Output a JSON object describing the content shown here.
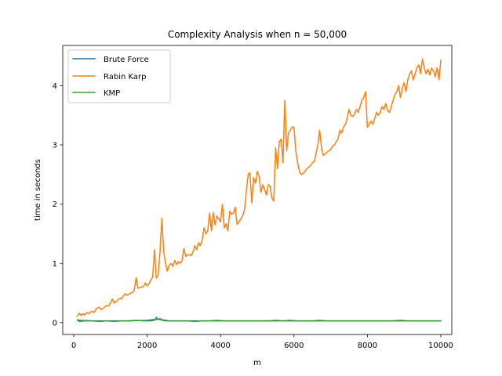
{
  "chart_data": {
    "type": "line",
    "title": "Complexity Analysis when n = 50,000",
    "xlabel": "m",
    "ylabel": "time in seconds",
    "xlim": [
      -300,
      10300
    ],
    "ylim": [
      -0.2,
      4.68
    ],
    "xticks": [
      0,
      2000,
      4000,
      6000,
      8000,
      10000
    ],
    "yticks": [
      0,
      1,
      2,
      3,
      4
    ],
    "grid": false,
    "legend_position": "top-left",
    "series": [
      {
        "name": "Brute Force",
        "color": "#1f77b4",
        "points": [
          [
            100,
            0.04
          ],
          [
            500,
            0.03
          ],
          [
            1000,
            0.03
          ],
          [
            1500,
            0.03
          ],
          [
            2000,
            0.04
          ],
          [
            2300,
            0.06
          ],
          [
            2600,
            0.03
          ],
          [
            3000,
            0.03
          ],
          [
            3500,
            0.03
          ],
          [
            4000,
            0.03
          ],
          [
            4500,
            0.03
          ],
          [
            5000,
            0.03
          ],
          [
            5500,
            0.03
          ],
          [
            6000,
            0.03
          ],
          [
            6500,
            0.03
          ],
          [
            7000,
            0.03
          ],
          [
            7500,
            0.03
          ],
          [
            8000,
            0.03
          ],
          [
            8500,
            0.03
          ],
          [
            9000,
            0.03
          ],
          [
            9500,
            0.03
          ],
          [
            10000,
            0.03
          ]
        ]
      },
      {
        "name": "Rabin Karp",
        "color": "#ff7f0e",
        "points": [
          [
            100,
            0.11
          ],
          [
            150,
            0.16
          ],
          [
            200,
            0.12
          ],
          [
            250,
            0.15
          ],
          [
            300,
            0.13
          ],
          [
            350,
            0.17
          ],
          [
            400,
            0.15
          ],
          [
            450,
            0.18
          ],
          [
            500,
            0.19
          ],
          [
            550,
            0.17
          ],
          [
            600,
            0.22
          ],
          [
            650,
            0.25
          ],
          [
            700,
            0.26
          ],
          [
            750,
            0.22
          ],
          [
            800,
            0.24
          ],
          [
            850,
            0.27
          ],
          [
            900,
            0.29
          ],
          [
            950,
            0.28
          ],
          [
            1000,
            0.33
          ],
          [
            1050,
            0.4
          ],
          [
            1100,
            0.33
          ],
          [
            1150,
            0.35
          ],
          [
            1200,
            0.38
          ],
          [
            1250,
            0.41
          ],
          [
            1300,
            0.4
          ],
          [
            1350,
            0.45
          ],
          [
            1400,
            0.49
          ],
          [
            1450,
            0.46
          ],
          [
            1500,
            0.48
          ],
          [
            1550,
            0.5
          ],
          [
            1600,
            0.51
          ],
          [
            1650,
            0.55
          ],
          [
            1700,
            0.76
          ],
          [
            1750,
            0.58
          ],
          [
            1800,
            0.59
          ],
          [
            1850,
            0.6
          ],
          [
            1900,
            0.61
          ],
          [
            1950,
            0.67
          ],
          [
            2000,
            0.62
          ],
          [
            2050,
            0.65
          ],
          [
            2100,
            0.72
          ],
          [
            2150,
            0.77
          ],
          [
            2200,
            1.23
          ],
          [
            2250,
            0.75
          ],
          [
            2300,
            0.8
          ],
          [
            2350,
            1.2
          ],
          [
            2400,
            1.76
          ],
          [
            2450,
            1.2
          ],
          [
            2500,
            1.0
          ],
          [
            2550,
            0.87
          ],
          [
            2600,
            0.97
          ],
          [
            2650,
            1.0
          ],
          [
            2700,
            0.95
          ],
          [
            2750,
            1.05
          ],
          [
            2800,
            0.98
          ],
          [
            2850,
            1.03
          ],
          [
            2900,
            1.0
          ],
          [
            2950,
            1.05
          ],
          [
            3000,
            1.25
          ],
          [
            3050,
            1.12
          ],
          [
            3100,
            1.14
          ],
          [
            3150,
            1.15
          ],
          [
            3200,
            1.13
          ],
          [
            3250,
            1.2
          ],
          [
            3300,
            1.3
          ],
          [
            3350,
            1.23
          ],
          [
            3400,
            1.35
          ],
          [
            3450,
            1.3
          ],
          [
            3500,
            1.4
          ],
          [
            3550,
            1.6
          ],
          [
            3600,
            1.5
          ],
          [
            3650,
            1.55
          ],
          [
            3700,
            1.85
          ],
          [
            3750,
            1.55
          ],
          [
            3800,
            1.86
          ],
          [
            3850,
            1.65
          ],
          [
            3900,
            1.8
          ],
          [
            3950,
            1.75
          ],
          [
            4000,
            1.7
          ],
          [
            4050,
            2.0
          ],
          [
            4100,
            1.6
          ],
          [
            4150,
            1.67
          ],
          [
            4200,
            1.55
          ],
          [
            4250,
            1.88
          ],
          [
            4300,
            1.83
          ],
          [
            4350,
            1.85
          ],
          [
            4400,
            1.95
          ],
          [
            4450,
            1.66
          ],
          [
            4500,
            1.7
          ],
          [
            4550,
            1.75
          ],
          [
            4600,
            1.8
          ],
          [
            4650,
            1.9
          ],
          [
            4700,
            2.2
          ],
          [
            4750,
            2.5
          ],
          [
            4800,
            2.53
          ],
          [
            4850,
            2.02
          ],
          [
            4900,
            2.45
          ],
          [
            4950,
            2.35
          ],
          [
            5000,
            2.55
          ],
          [
            5050,
            2.47
          ],
          [
            5100,
            2.2
          ],
          [
            5150,
            2.33
          ],
          [
            5200,
            2.25
          ],
          [
            5250,
            2.15
          ],
          [
            5300,
            2.33
          ],
          [
            5350,
            2.3
          ],
          [
            5400,
            2.1
          ],
          [
            5450,
            2.05
          ],
          [
            5500,
            2.95
          ],
          [
            5550,
            2.6
          ],
          [
            5600,
            3.05
          ],
          [
            5650,
            3.1
          ],
          [
            5700,
            2.7
          ],
          [
            5750,
            3.75
          ],
          [
            5800,
            2.9
          ],
          [
            5850,
            3.2
          ],
          [
            5900,
            3.25
          ],
          [
            5950,
            3.3
          ],
          [
            6000,
            3.3
          ],
          [
            6050,
            2.9
          ],
          [
            6100,
            2.7
          ],
          [
            6150,
            2.55
          ],
          [
            6200,
            2.5
          ],
          [
            6250,
            2.52
          ],
          [
            6300,
            2.55
          ],
          [
            6350,
            2.6
          ],
          [
            6400,
            2.62
          ],
          [
            6450,
            2.65
          ],
          [
            6500,
            2.7
          ],
          [
            6550,
            2.72
          ],
          [
            6600,
            2.85
          ],
          [
            6650,
            3.0
          ],
          [
            6700,
            3.25
          ],
          [
            6750,
            2.95
          ],
          [
            6800,
            2.82
          ],
          [
            6850,
            2.85
          ],
          [
            6900,
            2.88
          ],
          [
            6950,
            2.9
          ],
          [
            7000,
            2.92
          ],
          [
            7050,
            2.98
          ],
          [
            7100,
            3.0
          ],
          [
            7150,
            3.05
          ],
          [
            7200,
            3.1
          ],
          [
            7250,
            3.25
          ],
          [
            7300,
            3.2
          ],
          [
            7350,
            3.3
          ],
          [
            7400,
            3.35
          ],
          [
            7450,
            3.45
          ],
          [
            7500,
            3.6
          ],
          [
            7550,
            3.5
          ],
          [
            7600,
            3.48
          ],
          [
            7650,
            3.52
          ],
          [
            7700,
            3.6
          ],
          [
            7750,
            3.55
          ],
          [
            7800,
            3.65
          ],
          [
            7850,
            3.75
          ],
          [
            7900,
            3.8
          ],
          [
            7950,
            3.9
          ],
          [
            8000,
            3.3
          ],
          [
            8050,
            3.35
          ],
          [
            8100,
            3.4
          ],
          [
            8150,
            3.35
          ],
          [
            8200,
            3.45
          ],
          [
            8250,
            3.55
          ],
          [
            8300,
            3.5
          ],
          [
            8350,
            3.55
          ],
          [
            8400,
            3.65
          ],
          [
            8450,
            3.6
          ],
          [
            8500,
            3.7
          ],
          [
            8550,
            3.58
          ],
          [
            8600,
            3.55
          ],
          [
            8650,
            3.65
          ],
          [
            8700,
            3.75
          ],
          [
            8750,
            3.85
          ],
          [
            8800,
            3.9
          ],
          [
            8850,
            4.0
          ],
          [
            8900,
            3.8
          ],
          [
            8950,
            3.95
          ],
          [
            9000,
            4.05
          ],
          [
            9050,
            3.9
          ],
          [
            9100,
            4.1
          ],
          [
            9150,
            4.2
          ],
          [
            9200,
            4.25
          ],
          [
            9250,
            4.1
          ],
          [
            9300,
            4.2
          ],
          [
            9350,
            4.3
          ],
          [
            9400,
            4.35
          ],
          [
            9450,
            4.2
          ],
          [
            9500,
            4.45
          ],
          [
            9550,
            4.3
          ],
          [
            9600,
            4.2
          ],
          [
            9650,
            4.28
          ],
          [
            9700,
            4.18
          ],
          [
            9750,
            4.3
          ],
          [
            9800,
            4.25
          ],
          [
            9850,
            4.15
          ],
          [
            9900,
            4.3
          ],
          [
            9950,
            4.1
          ],
          [
            10000,
            4.43
          ]
        ]
      },
      {
        "name": "KMP",
        "color": "#2ca02c",
        "points": [
          [
            100,
            0.05
          ],
          [
            150,
            0.02
          ],
          [
            300,
            0.03
          ],
          [
            500,
            0.03
          ],
          [
            700,
            0.02
          ],
          [
            900,
            0.03
          ],
          [
            1100,
            0.02
          ],
          [
            1300,
            0.03
          ],
          [
            1500,
            0.03
          ],
          [
            1700,
            0.04
          ],
          [
            1900,
            0.03
          ],
          [
            2000,
            0.03
          ],
          [
            2100,
            0.03
          ],
          [
            2200,
            0.04
          ],
          [
            2250,
            0.09
          ],
          [
            2300,
            0.05
          ],
          [
            2350,
            0.07
          ],
          [
            2400,
            0.04
          ],
          [
            2500,
            0.03
          ],
          [
            2700,
            0.03
          ],
          [
            2900,
            0.03
          ],
          [
            3100,
            0.03
          ],
          [
            3300,
            0.02
          ],
          [
            3500,
            0.03
          ],
          [
            3700,
            0.03
          ],
          [
            3900,
            0.04
          ],
          [
            4100,
            0.03
          ],
          [
            4300,
            0.03
          ],
          [
            4500,
            0.03
          ],
          [
            4700,
            0.03
          ],
          [
            4900,
            0.03
          ],
          [
            5100,
            0.03
          ],
          [
            5300,
            0.03
          ],
          [
            5500,
            0.04
          ],
          [
            5700,
            0.03
          ],
          [
            5900,
            0.04
          ],
          [
            6100,
            0.03
          ],
          [
            6300,
            0.03
          ],
          [
            6500,
            0.03
          ],
          [
            6700,
            0.04
          ],
          [
            6900,
            0.03
          ],
          [
            7100,
            0.03
          ],
          [
            7300,
            0.03
          ],
          [
            7500,
            0.03
          ],
          [
            7700,
            0.03
          ],
          [
            7900,
            0.03
          ],
          [
            8100,
            0.03
          ],
          [
            8300,
            0.03
          ],
          [
            8500,
            0.03
          ],
          [
            8700,
            0.03
          ],
          [
            8900,
            0.04
          ],
          [
            9100,
            0.03
          ],
          [
            9300,
            0.03
          ],
          [
            9500,
            0.03
          ],
          [
            9700,
            0.03
          ],
          [
            9900,
            0.03
          ],
          [
            10000,
            0.03
          ]
        ]
      }
    ]
  }
}
